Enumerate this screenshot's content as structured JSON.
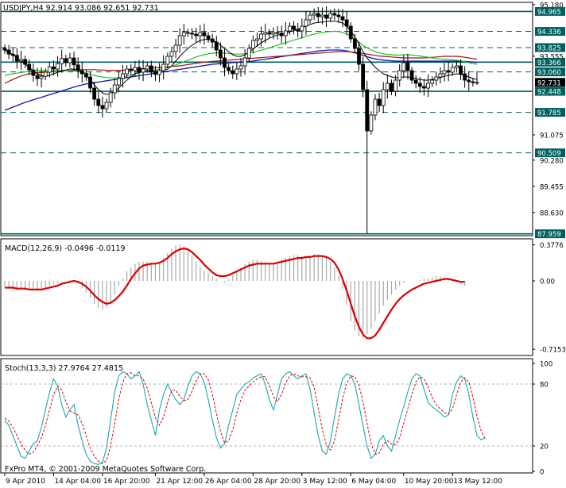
{
  "header": {
    "symbol_line": "USDJPY,H4  92.914 93.086 92.651 92.731",
    "macd_line": "MACD(12,26,9) -0.0496 -0.0119",
    "stoch_line": "Stoch(13,3,3) 27.9764 27.4815",
    "copyright": "FxPro MT4, © 2001-2009 MetaQuotes Software Corp."
  },
  "colors": {
    "background": "#ffffff",
    "frame": "#000000",
    "level_line": "#006060",
    "level_label_bg": "#006060",
    "level_label_text": "#ffffff",
    "current_price_bg": "#000000",
    "current_price_text": "#ffffff",
    "candles": "#000000",
    "ma_black": "#000000",
    "ma_green": "#22c022",
    "ma_darkred": "#a01414",
    "ma_blue": "#1414b4",
    "ma_purple": "#8c1e8c",
    "macd_hist": "#a8a8a8",
    "macd_signal": "#dd0000",
    "stoch_main": "#19a8b0",
    "stoch_signal": "#dd0000"
  },
  "chart_data": [
    {
      "type": "candlestick",
      "symbol": "USDJPY",
      "timeframe": "H4",
      "ohlc_last": {
        "open": 92.914,
        "high": 93.086,
        "low": 92.651,
        "close": 92.731
      },
      "current_price": "92.731",
      "ylim": [
        87.9,
        95.25
      ],
      "yticks": [
        "95.180",
        "94.965",
        "94.336",
        "93.825",
        "93.555",
        "93.366",
        "93.060",
        "92.731",
        "92.448",
        "91.785",
        "91.075",
        "90.509",
        "90.280",
        "89.455",
        "88.630",
        "87.959"
      ],
      "levels": [
        94.965,
        94.336,
        93.825,
        93.366,
        93.06,
        92.448,
        91.785,
        90.509,
        87.959
      ],
      "level_labels": [
        "94.965",
        "94.336",
        "93.825",
        "93.366",
        "93.060",
        "92.448",
        "91.785",
        "90.509",
        "87.959"
      ],
      "solid_levels": [
        94.965,
        93.366,
        92.448,
        87.959
      ],
      "plain_ticks": [
        95.18,
        93.555,
        91.075,
        90.28,
        89.455,
        88.63
      ],
      "plain_tick_labels": [
        "95.180",
        "93.555",
        "91.075",
        "90.280",
        "89.455",
        "88.630"
      ],
      "closes": [
        93.75,
        93.62,
        93.58,
        93.4,
        93.45,
        93.3,
        93.12,
        92.95,
        92.85,
        92.92,
        93.05,
        93.22,
        93.15,
        93.32,
        93.48,
        93.35,
        93.5,
        93.28,
        93.1,
        93.0,
        92.9,
        92.55,
        92.2,
        92.0,
        91.9,
        92.1,
        92.4,
        92.65,
        92.85,
        93.0,
        93.15,
        93.1,
        93.2,
        93.05,
        93.15,
        93.25,
        93.05,
        92.98,
        93.1,
        93.3,
        93.55,
        93.7,
        93.9,
        94.2,
        94.3,
        94.28,
        94.25,
        94.2,
        94.3,
        94.2,
        94.1,
        94.0,
        93.75,
        93.5,
        93.2,
        93.1,
        93.0,
        93.15,
        93.25,
        93.5,
        93.8,
        94.05,
        94.1,
        94.25,
        94.3,
        94.25,
        94.3,
        94.28,
        94.2,
        94.35,
        94.5,
        94.4,
        94.35,
        94.5,
        94.7,
        94.85,
        94.9,
        94.8,
        94.85,
        94.75,
        94.9,
        94.85,
        94.8,
        94.7,
        94.5,
        94.1,
        93.8,
        93.3,
        92.5,
        91.2,
        91.7,
        92.2,
        92.0,
        92.5,
        92.7,
        92.45,
        92.8,
        93.1,
        93.35,
        93.1,
        92.8,
        92.7,
        92.6,
        92.55,
        92.7,
        92.8,
        92.9,
        93.0,
        93.1,
        93.05,
        93.2,
        93.25,
        93.0,
        92.8,
        92.75,
        92.72,
        92.73
      ],
      "ma_black": [
        93.75,
        93.68,
        93.6,
        93.5,
        93.4,
        93.3,
        93.2,
        93.1,
        93.0,
        92.95,
        92.92,
        92.95,
        93.0,
        93.05,
        93.1,
        93.12,
        93.15,
        93.15,
        93.12,
        93.05,
        92.95,
        92.8,
        92.65,
        92.5,
        92.4,
        92.35,
        92.38,
        92.45,
        92.55,
        92.68,
        92.8,
        92.9,
        93.0,
        93.05,
        93.08,
        93.1,
        93.1,
        93.08,
        93.08,
        93.1,
        93.15,
        93.25,
        93.4,
        93.55,
        93.68,
        93.8,
        93.9,
        93.98,
        94.05,
        94.08,
        94.08,
        94.05,
        94.0,
        93.9,
        93.8,
        93.7,
        93.6,
        93.55,
        93.55,
        93.6,
        93.68,
        93.78,
        93.88,
        93.98,
        94.05,
        94.12,
        94.18,
        94.22,
        94.25,
        94.28,
        94.32,
        94.36,
        94.4,
        94.45,
        94.5,
        94.55,
        94.6,
        94.62,
        94.63,
        94.65,
        94.66,
        94.66,
        94.64,
        94.6,
        94.5,
        94.35,
        94.15,
        93.95,
        93.7,
        93.5,
        93.35,
        93.2,
        93.1,
        93.0,
        92.95,
        92.9,
        92.88,
        92.88,
        92.9,
        92.9,
        92.88,
        92.85,
        92.82,
        92.8,
        92.8,
        92.82,
        92.85,
        92.88,
        92.92,
        92.95,
        92.98,
        93.0,
        92.98,
        92.95,
        92.9,
        92.85,
        92.82
      ],
      "ma_green": [
        92.95,
        92.98,
        93.0,
        93.02,
        93.04,
        93.06,
        93.08,
        93.09,
        93.1,
        93.1,
        93.1,
        93.1,
        93.1,
        93.1,
        93.1,
        93.1,
        93.1,
        93.09,
        93.07,
        93.05,
        93.02,
        92.98,
        92.95,
        92.92,
        92.9,
        92.88,
        92.87,
        92.87,
        92.88,
        92.9,
        92.93,
        92.96,
        93.0,
        93.03,
        93.06,
        93.08,
        93.1,
        93.12,
        93.14,
        93.17,
        93.2,
        93.24,
        93.28,
        93.33,
        93.38,
        93.43,
        93.48,
        93.53,
        93.57,
        93.6,
        93.63,
        93.65,
        93.66,
        93.66,
        93.65,
        93.64,
        93.63,
        93.62,
        93.62,
        93.63,
        93.65,
        93.68,
        93.71,
        93.74,
        93.78,
        93.82,
        93.86,
        93.9,
        93.94,
        93.98,
        94.02,
        94.06,
        94.1,
        94.14,
        94.18,
        94.22,
        94.25,
        94.28,
        94.3,
        94.32,
        94.33,
        94.34,
        94.33,
        94.3,
        94.25,
        94.18,
        94.1,
        94.0,
        93.9,
        93.82,
        93.75,
        93.7,
        93.66,
        93.63,
        93.61,
        93.6,
        93.59,
        93.59,
        93.6,
        93.6,
        93.59,
        93.58,
        93.56,
        93.54,
        93.52,
        93.5,
        93.48,
        93.47,
        93.46,
        93.45,
        93.44,
        93.43,
        93.41,
        93.38,
        93.35,
        93.32,
        93.3
      ],
      "ma_darkred": [
        92.7,
        92.76,
        92.82,
        92.88,
        92.93,
        92.97,
        93.0,
        93.02,
        93.03,
        93.04,
        93.05,
        93.06,
        93.07,
        93.08,
        93.09,
        93.1,
        93.11,
        93.12,
        93.13,
        93.13,
        93.13,
        93.13,
        93.13,
        93.12,
        93.12,
        93.11,
        93.11,
        93.11,
        93.11,
        93.11,
        93.12,
        93.13,
        93.14,
        93.15,
        93.16,
        93.17,
        93.18,
        93.19,
        93.2,
        93.21,
        93.22,
        93.23,
        93.24,
        93.25,
        93.27,
        93.29,
        93.31,
        93.33,
        93.35,
        93.37,
        93.38,
        93.39,
        93.4,
        93.41,
        93.42,
        93.43,
        93.44,
        93.45,
        93.46,
        93.47,
        93.48,
        93.49,
        93.5,
        93.51,
        93.52,
        93.53,
        93.54,
        93.55,
        93.56,
        93.57,
        93.58,
        93.59,
        93.6,
        93.61,
        93.62,
        93.63,
        93.64,
        93.65,
        93.66,
        93.67,
        93.68,
        93.69,
        93.7,
        93.7,
        93.7,
        93.69,
        93.68,
        93.66,
        93.64,
        93.62,
        93.6,
        93.58,
        93.56,
        93.55,
        93.54,
        93.53,
        93.52,
        93.51,
        93.5,
        93.5,
        93.5,
        93.5,
        93.5,
        93.5,
        93.51,
        93.52,
        93.53,
        93.54,
        93.55,
        93.55,
        93.55,
        93.55,
        93.54,
        93.52,
        93.5,
        93.48,
        93.46
      ],
      "ma_blue": [
        91.85,
        91.9,
        91.95,
        92.0,
        92.05,
        92.1,
        92.14,
        92.18,
        92.22,
        92.26,
        92.3,
        92.34,
        92.38,
        92.42,
        92.46,
        92.5,
        92.54,
        92.58,
        92.62,
        92.65,
        92.68,
        92.7,
        92.72,
        92.74,
        92.76,
        92.78,
        92.8,
        92.82,
        92.84,
        92.86,
        92.88,
        92.9,
        92.92,
        92.94,
        92.96,
        92.98,
        93.0,
        93.02,
        93.04,
        93.06,
        93.08,
        93.1,
        93.12,
        93.14,
        93.16,
        93.18,
        93.2,
        93.22,
        93.24,
        93.26,
        93.28,
        93.3,
        93.31,
        93.32,
        93.33,
        93.34,
        93.35,
        93.36,
        93.37,
        93.38,
        93.39,
        93.4,
        93.42,
        93.44,
        93.46,
        93.48,
        93.5,
        93.52,
        93.54,
        93.56,
        93.58,
        93.6,
        93.62,
        93.64,
        93.66,
        93.68,
        93.7,
        93.72,
        93.73,
        93.74,
        93.75,
        93.75,
        93.75,
        93.74,
        93.72,
        93.69,
        93.66,
        93.62,
        93.58,
        93.54,
        93.5,
        93.47,
        93.45,
        93.43,
        93.42,
        93.41,
        93.4,
        93.4,
        93.4,
        93.4,
        93.4,
        93.4,
        93.4,
        93.4,
        93.4,
        93.4,
        93.4,
        93.4,
        93.4,
        93.4,
        93.4,
        93.4,
        93.4,
        93.39,
        93.38,
        93.37,
        93.36
      ]
    },
    {
      "type": "histogram+line",
      "name": "MACD(12,26,9)",
      "main_value": -0.0496,
      "signal_value": -0.0119,
      "yticks": [
        "0.3776",
        "0.00",
        "-0.7153"
      ],
      "ylim": [
        -0.78,
        0.44
      ],
      "histogram": [
        -0.06,
        -0.08,
        -0.09,
        -0.1,
        -0.09,
        -0.08,
        -0.08,
        -0.09,
        -0.1,
        -0.09,
        -0.07,
        -0.05,
        -0.03,
        -0.02,
        -0.01,
        0.0,
        0.01,
        0.0,
        -0.03,
        -0.07,
        -0.12,
        -0.18,
        -0.24,
        -0.28,
        -0.3,
        -0.28,
        -0.22,
        -0.14,
        -0.05,
        0.03,
        0.1,
        0.14,
        0.18,
        0.2,
        0.2,
        0.2,
        0.19,
        0.18,
        0.2,
        0.24,
        0.29,
        0.34,
        0.37,
        0.38,
        0.36,
        0.32,
        0.26,
        0.2,
        0.15,
        0.11,
        0.08,
        0.05,
        0.02,
        0.0,
        -0.01,
        0.02,
        0.06,
        0.1,
        0.14,
        0.18,
        0.2,
        0.22,
        0.22,
        0.21,
        0.2,
        0.18,
        0.18,
        0.2,
        0.22,
        0.24,
        0.26,
        0.27,
        0.27,
        0.26,
        0.25,
        0.26,
        0.28,
        0.28,
        0.27,
        0.24,
        0.2,
        0.14,
        0.05,
        -0.08,
        -0.25,
        -0.42,
        -0.52,
        -0.58,
        -0.6,
        -0.56,
        -0.5,
        -0.42,
        -0.34,
        -0.26,
        -0.2,
        -0.14,
        -0.09,
        -0.05,
        -0.02,
        0.0,
        0.0,
        0.0,
        0.01,
        0.02,
        0.03,
        0.04,
        0.05,
        0.05,
        0.04,
        0.03,
        0.01,
        -0.01,
        -0.03,
        -0.05
      ],
      "signal": [
        -0.07,
        -0.07,
        -0.07,
        -0.08,
        -0.08,
        -0.08,
        -0.09,
        -0.09,
        -0.09,
        -0.09,
        -0.08,
        -0.07,
        -0.06,
        -0.05,
        -0.03,
        -0.02,
        -0.01,
        0.0,
        -0.01,
        -0.03,
        -0.06,
        -0.1,
        -0.15,
        -0.19,
        -0.22,
        -0.24,
        -0.23,
        -0.2,
        -0.16,
        -0.11,
        -0.05,
        0.02,
        0.08,
        0.13,
        0.16,
        0.17,
        0.18,
        0.18,
        0.19,
        0.21,
        0.24,
        0.28,
        0.31,
        0.33,
        0.34,
        0.33,
        0.3,
        0.26,
        0.22,
        0.17,
        0.13,
        0.09,
        0.06,
        0.05,
        0.05,
        0.06,
        0.08,
        0.1,
        0.12,
        0.14,
        0.16,
        0.17,
        0.18,
        0.18,
        0.18,
        0.18,
        0.18,
        0.19,
        0.2,
        0.21,
        0.22,
        0.23,
        0.24,
        0.24,
        0.25,
        0.25,
        0.26,
        0.26,
        0.26,
        0.25,
        0.23,
        0.19,
        0.12,
        0.02,
        -0.1,
        -0.24,
        -0.37,
        -0.48,
        -0.56,
        -0.6,
        -0.6,
        -0.57,
        -0.51,
        -0.44,
        -0.37,
        -0.3,
        -0.24,
        -0.19,
        -0.15,
        -0.12,
        -0.09,
        -0.07,
        -0.05,
        -0.03,
        -0.02,
        -0.01,
        0.0,
        0.01,
        0.02,
        0.02,
        0.01,
        0.0,
        -0.01,
        -0.01
      ]
    },
    {
      "type": "line",
      "name": "Stoch(13,3,3)",
      "main_value": 27.9764,
      "signal_value": 27.4815,
      "yticks": [
        "100",
        "80",
        "20",
        "0"
      ],
      "ylim": [
        0,
        100
      ],
      "levels": [
        80,
        20
      ],
      "main": [
        45,
        40,
        30,
        20,
        10,
        8,
        15,
        22,
        25,
        38,
        55,
        72,
        85,
        78,
        60,
        48,
        55,
        60,
        40,
        25,
        12,
        5,
        3,
        2,
        4,
        18,
        45,
        72,
        88,
        92,
        90,
        85,
        88,
        92,
        80,
        60,
        45,
        30,
        55,
        70,
        80,
        72,
        65,
        60,
        65,
        78,
        88,
        92,
        90,
        82,
        65,
        45,
        28,
        18,
        22,
        40,
        55,
        70,
        75,
        80,
        82,
        86,
        88,
        90,
        80,
        65,
        55,
        70,
        85,
        90,
        92,
        88,
        85,
        88,
        90,
        75,
        52,
        30,
        15,
        12,
        25,
        48,
        70,
        85,
        90,
        88,
        80,
        60,
        40,
        20,
        8,
        12,
        25,
        30,
        20,
        15,
        30,
        45,
        58,
        72,
        85,
        90,
        88,
        75,
        62,
        58,
        55,
        52,
        48,
        50,
        70,
        82,
        88,
        85,
        70,
        48,
        30,
        26,
        28
      ],
      "signal": [
        47,
        44,
        38,
        30,
        22,
        16,
        12,
        14,
        20,
        28,
        40,
        55,
        70,
        78,
        74,
        63,
        54,
        52,
        50,
        42,
        30,
        18,
        10,
        5,
        3,
        6,
        20,
        42,
        65,
        82,
        90,
        91,
        88,
        88,
        85,
        76,
        62,
        47,
        40,
        48,
        62,
        74,
        74,
        68,
        64,
        65,
        73,
        83,
        90,
        90,
        84,
        70,
        51,
        34,
        23,
        25,
        36,
        52,
        65,
        74,
        78,
        82,
        85,
        87,
        87,
        78,
        68,
        63,
        70,
        81,
        88,
        90,
        88,
        87,
        87,
        86,
        77,
        57,
        36,
        21,
        16,
        25,
        45,
        66,
        81,
        88,
        87,
        79,
        63,
        42,
        22,
        12,
        13,
        22,
        25,
        22,
        21,
        28,
        42,
        56,
        70,
        82,
        87,
        85,
        77,
        67,
        60,
        56,
        52,
        51,
        56,
        70,
        82,
        86,
        82,
        67,
        49,
        35,
        27
      ]
    }
  ],
  "x_axis": {
    "labels": [
      "9 Apr 2010",
      "14 Apr 04:00",
      "16 Apr 20:00",
      "21 Apr 12:00",
      "26 Apr 04:00",
      "28 Apr 20:00",
      "3 May 12:00",
      "6 May 04:00",
      "10 May 20:00",
      "13 May 12:00"
    ]
  }
}
